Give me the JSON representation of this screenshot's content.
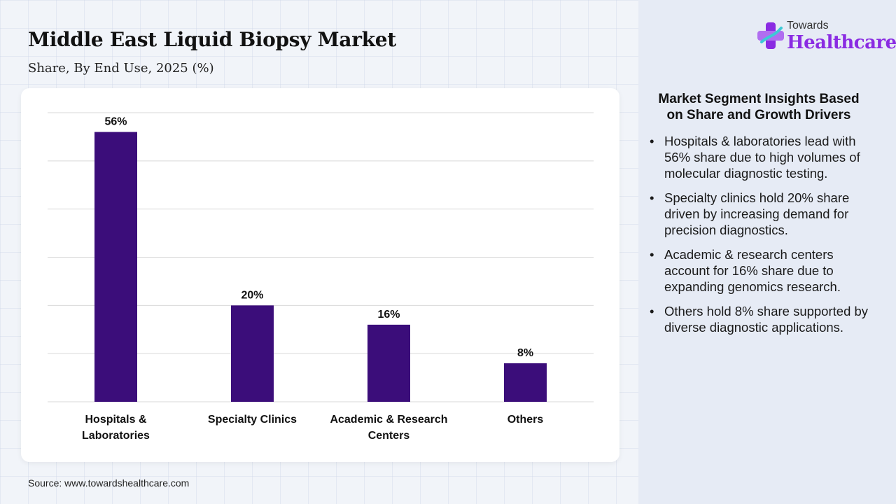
{
  "title": "Middle East Liquid Biopsy Market",
  "subtitle": "Share, By End Use, 2025 (%)",
  "source": "Source: www.towardshealthcare.com",
  "logo": {
    "top_text": "Towards",
    "main_text": "Healthcare",
    "icon": "cross-logo-icon"
  },
  "insights": {
    "title": "Market Segment Insights Based on Share and Growth Drivers",
    "items": [
      "Hospitals & laboratories lead with 56% share due to high volumes of molecular diagnostic testing.",
      "Specialty clinics hold 20% share driven by increasing demand for precision diagnostics.",
      "Academic & research centers account for 16% share due to expanding genomics research.",
      "Others hold 8% share supported by diverse diagnostic applications."
    ]
  },
  "colors": {
    "bar": "#3b0d7a",
    "brand": "#8a2be2",
    "grid": "#d9d9d9"
  },
  "chart_data": {
    "type": "bar",
    "categories": [
      [
        "Hospitals &",
        "Laboratories"
      ],
      [
        "Specialty Clinics"
      ],
      [
        "Academic & Research",
        "Centers"
      ],
      [
        "Others"
      ]
    ],
    "values": [
      56,
      20,
      16,
      8
    ],
    "data_labels": [
      "56%",
      "20%",
      "16%",
      "8%"
    ],
    "ylim": [
      0,
      60
    ],
    "grid": true,
    "legend": "none"
  }
}
